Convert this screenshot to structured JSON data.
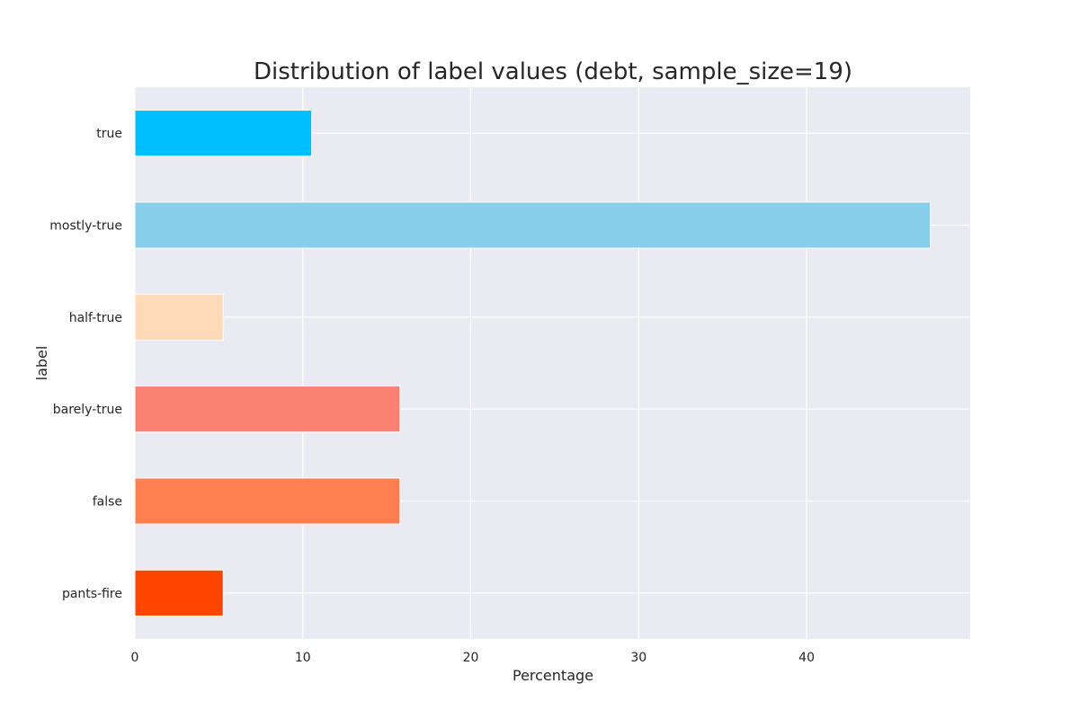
{
  "chart_data": {
    "type": "bar",
    "orientation": "horizontal",
    "title": "Distribution of label values (debt, sample_size=19)",
    "xlabel": "Percentage",
    "ylabel": "label",
    "categories": [
      "true",
      "mostly-true",
      "half-true",
      "barely-true",
      "false",
      "pants-fire"
    ],
    "values": [
      10.53,
      47.37,
      5.26,
      15.79,
      15.79,
      5.26
    ],
    "colors": [
      "#00bfff",
      "#87ceeb",
      "#ffdab9",
      "#fa8072",
      "#ff7f50",
      "#ff4500"
    ],
    "xlim": [
      0,
      49.74
    ],
    "xticks": [
      0,
      10,
      20,
      30,
      40
    ],
    "xtick_labels": [
      "0",
      "10",
      "20",
      "30",
      "40"
    ],
    "grid": true,
    "background_color": "#eaeaf2"
  }
}
